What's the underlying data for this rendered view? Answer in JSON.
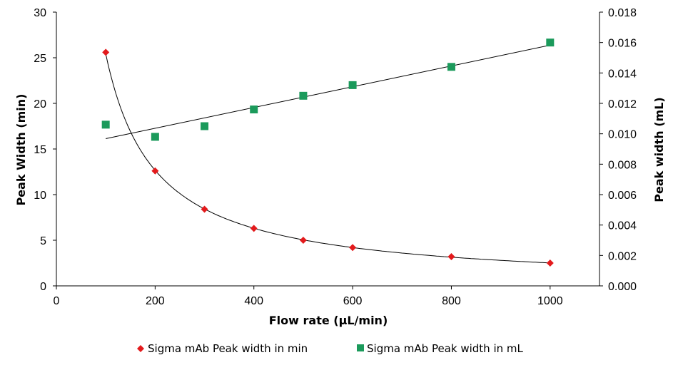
{
  "chart_data": {
    "type": "scatter",
    "xlabel": "Flow rate (µL/min)",
    "ylabel": "Peak Width (min)",
    "y2label": "Peak width (mL)",
    "xlim": [
      0,
      1100
    ],
    "ylim": [
      0,
      30
    ],
    "y2lim": [
      0,
      0.018
    ],
    "x_ticks": [
      "0",
      "200",
      "400",
      "600",
      "800",
      "1000"
    ],
    "y_ticks": [
      "0",
      "5",
      "10",
      "15",
      "20",
      "25",
      "30"
    ],
    "y2_ticks": [
      "0.000",
      "0.002",
      "0.004",
      "0.006",
      "0.008",
      "0.010",
      "0.012",
      "0.014",
      "0.016",
      "0.018"
    ],
    "grid": false,
    "legend_position": "bottom",
    "series": [
      {
        "name": "Sigma mAb Peak width in min",
        "axis": "left",
        "marker": "diamond",
        "color": "#e31a1c",
        "x": [
          100,
          200,
          300,
          400,
          500,
          600,
          800,
          1000
        ],
        "y": [
          25.6,
          12.6,
          8.4,
          6.3,
          5.0,
          4.2,
          3.2,
          2.5
        ],
        "trendline": "power"
      },
      {
        "name": "Sigma mAb Peak width in mL",
        "axis": "right",
        "marker": "square",
        "color": "#1b9a5b",
        "x": [
          100,
          200,
          300,
          400,
          500,
          600,
          800,
          1000
        ],
        "y": [
          0.0106,
          0.0098,
          0.0105,
          0.0116,
          0.0125,
          0.0132,
          0.0144,
          0.016
        ],
        "trendline": "linear"
      }
    ]
  }
}
